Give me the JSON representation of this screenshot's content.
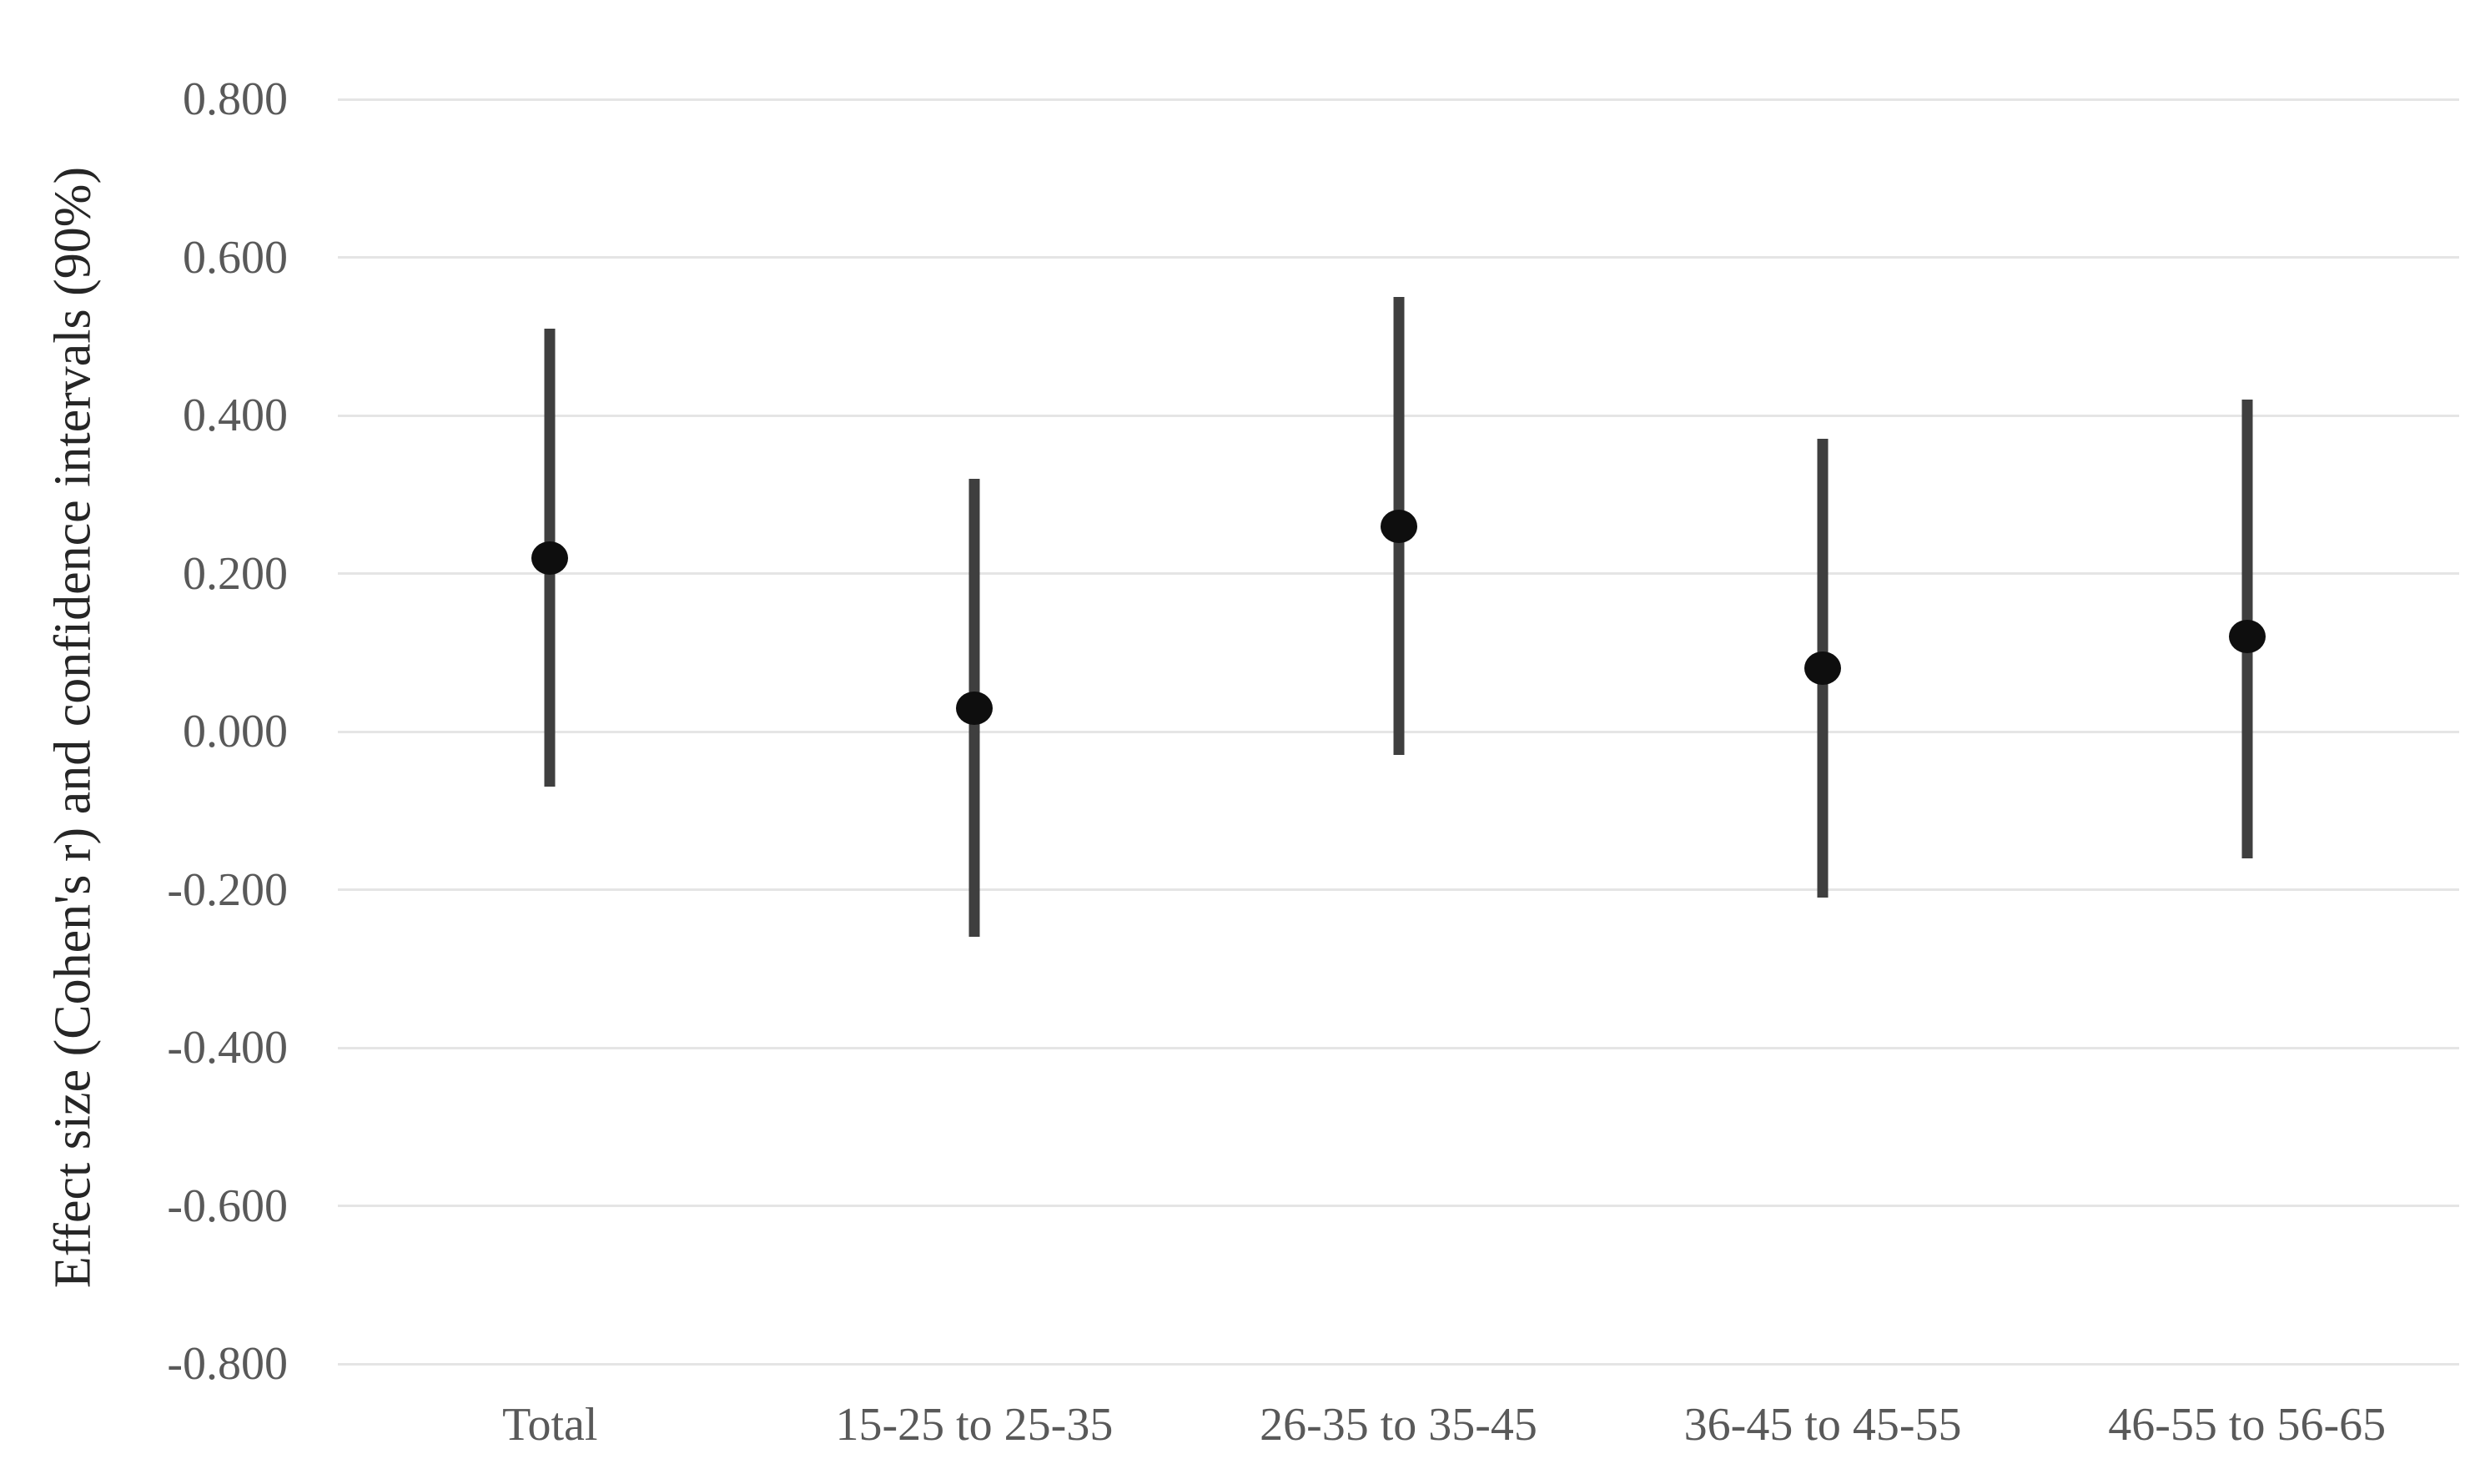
{
  "chart_data": {
    "type": "scatter",
    "title": "",
    "xlabel": "",
    "ylabel": "Effect size (Cohen's r) and confidence intervals (90%)",
    "ylim": [
      -0.8,
      0.8
    ],
    "ytick_step": 0.2,
    "ytick_labels": [
      "0.800",
      "0.600",
      "0.400",
      "0.200",
      "0.000",
      "-0.200",
      "-0.400",
      "-0.600",
      "-0.800"
    ],
    "ytick_values": [
      0.8,
      0.6,
      0.4,
      0.2,
      0.0,
      -0.2,
      -0.4,
      -0.6,
      -0.8
    ],
    "categories": [
      "Total",
      "15-25 to 25-35",
      "26-35 to 35-45",
      "36-45 to 45-55",
      "46-55 to 56-65"
    ],
    "series": [
      {
        "name": "Effect size (Cohen's r) with 90% confidence interval",
        "values": [
          0.22,
          0.03,
          0.26,
          0.08,
          0.12
        ],
        "ci_low": [
          -0.07,
          -0.26,
          -0.03,
          -0.21,
          -0.16
        ],
        "ci_high": [
          0.51,
          0.32,
          0.55,
          0.37,
          0.42
        ]
      }
    ],
    "grid": true,
    "legend": false
  },
  "colors": {
    "background": "#ffffff",
    "gridline": "#e5e5e5",
    "tick_label": "#595959",
    "category_label": "#595959",
    "axis_title": "#262626",
    "error_bar": "#3f3f3f",
    "marker": "#0e0e0e"
  }
}
